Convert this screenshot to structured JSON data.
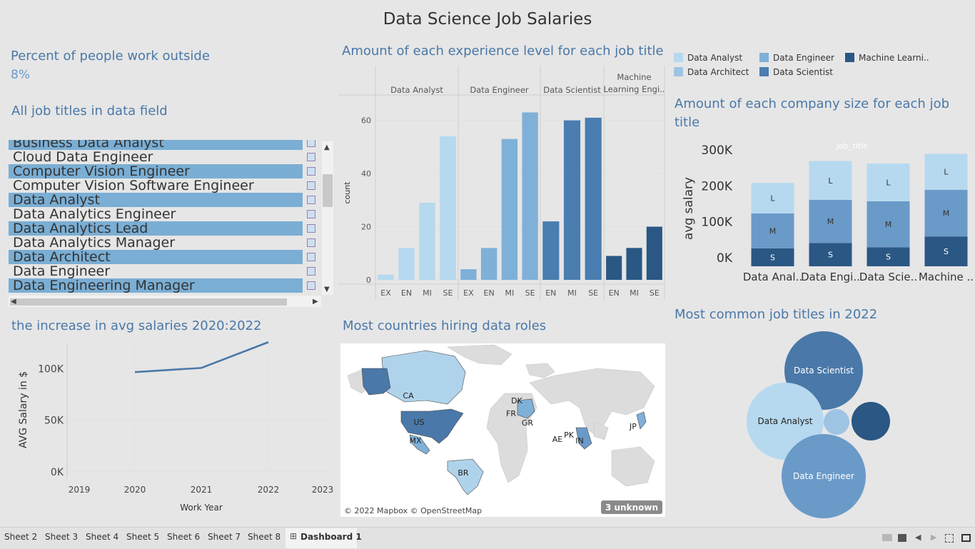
{
  "dashboard": {
    "title": "Data Science Job Salaries"
  },
  "kpi": {
    "title": "Percent of people work outside",
    "value": "8%"
  },
  "job_list": {
    "title": "All job titles in data field",
    "items": [
      {
        "label": "Business Data Analyst",
        "selected": true
      },
      {
        "label": "Cloud Data Engineer",
        "selected": false
      },
      {
        "label": "Computer Vision Engineer",
        "selected": true
      },
      {
        "label": "Computer Vision Software Engineer",
        "selected": false
      },
      {
        "label": "Data Analyst",
        "selected": true
      },
      {
        "label": "Data Analytics Engineer",
        "selected": false
      },
      {
        "label": "Data Analytics Lead",
        "selected": true
      },
      {
        "label": "Data Analytics Manager",
        "selected": false
      },
      {
        "label": "Data Architect",
        "selected": true
      },
      {
        "label": "Data Engineer",
        "selected": false
      },
      {
        "label": "Data Engineering Manager",
        "selected": true
      }
    ]
  },
  "legend": {
    "items": [
      {
        "label": "Data Analyst",
        "color": "#b6d9ef"
      },
      {
        "label": "Data Engineer",
        "color": "#7fb0d8"
      },
      {
        "label": "Machine Learni..",
        "color": "#2a5783"
      },
      {
        "label": "Data Architect",
        "color": "#9ec4e4"
      },
      {
        "label": "Data Scientist",
        "color": "#4a7db0"
      }
    ]
  },
  "chart_data": [
    {
      "title": "Amount of each experience level for each job title",
      "type": "bar",
      "ylabel": "count",
      "ylim": [
        0,
        65
      ],
      "yticks": [
        0,
        20,
        40,
        60
      ],
      "groups": [
        {
          "name": "Data Analyst",
          "color": "#b6d9ef",
          "categories": [
            "EX",
            "EN",
            "MI",
            "SE"
          ],
          "values": [
            2,
            12,
            29,
            54
          ]
        },
        {
          "name": "Data Engineer",
          "color": "#7fb0d8",
          "categories": [
            "EX",
            "EN",
            "MI",
            "SE"
          ],
          "values": [
            4,
            12,
            53,
            63
          ]
        },
        {
          "name": "Data Scientist",
          "color": "#4a7db0",
          "categories": [
            "EN",
            "MI",
            "SE"
          ],
          "values": [
            22,
            60,
            61
          ]
        },
        {
          "name": "Machine Learning Engi..",
          "color": "#2a5783",
          "categories": [
            "EN",
            "MI",
            "SE"
          ],
          "values": [
            9,
            12,
            20
          ]
        }
      ]
    },
    {
      "title": "Amount of each company size for each job title",
      "type": "bar",
      "stacked": true,
      "ylabel": "avg salary",
      "header": "job_title",
      "yticks": [
        "0K",
        "100K",
        "200K",
        "300K"
      ],
      "ylim": [
        0,
        320
      ],
      "categories": [
        "Data Anal..",
        "Data Engi..",
        "Data Scie..",
        "Machine .."
      ],
      "series": [
        {
          "name": "S",
          "color": "#2a5783",
          "values": [
            50,
            65,
            53,
            83
          ]
        },
        {
          "name": "M",
          "color": "#6a9ac8",
          "values": [
            97,
            120,
            128,
            130
          ]
        },
        {
          "name": "L",
          "color": "#b6d9ef",
          "values": [
            85,
            108,
            105,
            100
          ]
        }
      ]
    },
    {
      "title": "the increase in avg salaries 2020:2022",
      "type": "line",
      "xlabel": "Work Year",
      "ylabel": "AVG Salary in $",
      "xticks": [
        "2019",
        "2020",
        "2021",
        "2022",
        "2023"
      ],
      "yticks": [
        "0K",
        "50K",
        "100K"
      ],
      "x": [
        2020,
        2021,
        2022
      ],
      "y": [
        96000,
        100000,
        125000
      ]
    },
    {
      "title": "Most common job titles in 2022",
      "type": "bubble",
      "bubbles": [
        {
          "label": "Data Scientist",
          "color": "#4a78a8"
        },
        {
          "label": "Data Analyst",
          "color": "#b6d9ef"
        },
        {
          "label": "Data Engineer",
          "color": "#6a9ac8"
        },
        {
          "label": "",
          "color": "#9ec4e4"
        },
        {
          "label": "",
          "color": "#2a5783"
        }
      ]
    }
  ],
  "map": {
    "title": "Most countries hiring data roles",
    "labels": [
      "CA",
      "US",
      "MX",
      "BR",
      "DK",
      "FR",
      "GR",
      "AE",
      "PK",
      "IN",
      "JP"
    ],
    "attribution": "© 2022 Mapbox © OpenStreetMap",
    "unknown_badge": "3 unknown"
  },
  "tabs": {
    "items": [
      "Sheet 2",
      "Sheet 3",
      "Sheet 4",
      "Sheet 5",
      "Sheet 6",
      "Sheet 7",
      "Sheet 8"
    ],
    "active": "Dashboard 1"
  }
}
